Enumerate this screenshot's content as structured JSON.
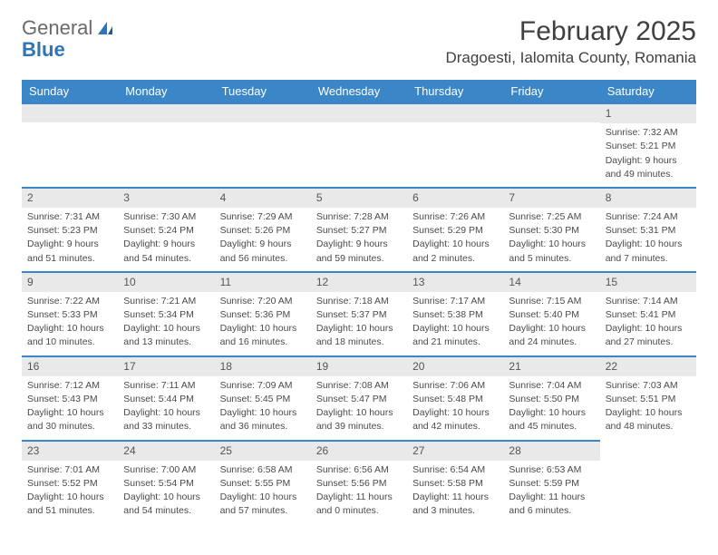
{
  "logo": {
    "text1": "General",
    "text2": "Blue",
    "icon_color": "#2e75b6",
    "text1_color": "#6a6a6a"
  },
  "title": "February 2025",
  "location": "Dragoesti, Ialomita County, Romania",
  "header_bg": "#3b86c7",
  "header_fg": "#ffffff",
  "daynum_bg": "#e9e9e9",
  "divider_color": "#3b86c7",
  "text_color": "#4a4a4a",
  "columns": [
    "Sunday",
    "Monday",
    "Tuesday",
    "Wednesday",
    "Thursday",
    "Friday",
    "Saturday"
  ],
  "weeks": [
    [
      null,
      null,
      null,
      null,
      null,
      null,
      {
        "n": "1",
        "sunrise": "Sunrise: 7:32 AM",
        "sunset": "Sunset: 5:21 PM",
        "day1": "Daylight: 9 hours",
        "day2": "and 49 minutes."
      }
    ],
    [
      {
        "n": "2",
        "sunrise": "Sunrise: 7:31 AM",
        "sunset": "Sunset: 5:23 PM",
        "day1": "Daylight: 9 hours",
        "day2": "and 51 minutes."
      },
      {
        "n": "3",
        "sunrise": "Sunrise: 7:30 AM",
        "sunset": "Sunset: 5:24 PM",
        "day1": "Daylight: 9 hours",
        "day2": "and 54 minutes."
      },
      {
        "n": "4",
        "sunrise": "Sunrise: 7:29 AM",
        "sunset": "Sunset: 5:26 PM",
        "day1": "Daylight: 9 hours",
        "day2": "and 56 minutes."
      },
      {
        "n": "5",
        "sunrise": "Sunrise: 7:28 AM",
        "sunset": "Sunset: 5:27 PM",
        "day1": "Daylight: 9 hours",
        "day2": "and 59 minutes."
      },
      {
        "n": "6",
        "sunrise": "Sunrise: 7:26 AM",
        "sunset": "Sunset: 5:29 PM",
        "day1": "Daylight: 10 hours",
        "day2": "and 2 minutes."
      },
      {
        "n": "7",
        "sunrise": "Sunrise: 7:25 AM",
        "sunset": "Sunset: 5:30 PM",
        "day1": "Daylight: 10 hours",
        "day2": "and 5 minutes."
      },
      {
        "n": "8",
        "sunrise": "Sunrise: 7:24 AM",
        "sunset": "Sunset: 5:31 PM",
        "day1": "Daylight: 10 hours",
        "day2": "and 7 minutes."
      }
    ],
    [
      {
        "n": "9",
        "sunrise": "Sunrise: 7:22 AM",
        "sunset": "Sunset: 5:33 PM",
        "day1": "Daylight: 10 hours",
        "day2": "and 10 minutes."
      },
      {
        "n": "10",
        "sunrise": "Sunrise: 7:21 AM",
        "sunset": "Sunset: 5:34 PM",
        "day1": "Daylight: 10 hours",
        "day2": "and 13 minutes."
      },
      {
        "n": "11",
        "sunrise": "Sunrise: 7:20 AM",
        "sunset": "Sunset: 5:36 PM",
        "day1": "Daylight: 10 hours",
        "day2": "and 16 minutes."
      },
      {
        "n": "12",
        "sunrise": "Sunrise: 7:18 AM",
        "sunset": "Sunset: 5:37 PM",
        "day1": "Daylight: 10 hours",
        "day2": "and 18 minutes."
      },
      {
        "n": "13",
        "sunrise": "Sunrise: 7:17 AM",
        "sunset": "Sunset: 5:38 PM",
        "day1": "Daylight: 10 hours",
        "day2": "and 21 minutes."
      },
      {
        "n": "14",
        "sunrise": "Sunrise: 7:15 AM",
        "sunset": "Sunset: 5:40 PM",
        "day1": "Daylight: 10 hours",
        "day2": "and 24 minutes."
      },
      {
        "n": "15",
        "sunrise": "Sunrise: 7:14 AM",
        "sunset": "Sunset: 5:41 PM",
        "day1": "Daylight: 10 hours",
        "day2": "and 27 minutes."
      }
    ],
    [
      {
        "n": "16",
        "sunrise": "Sunrise: 7:12 AM",
        "sunset": "Sunset: 5:43 PM",
        "day1": "Daylight: 10 hours",
        "day2": "and 30 minutes."
      },
      {
        "n": "17",
        "sunrise": "Sunrise: 7:11 AM",
        "sunset": "Sunset: 5:44 PM",
        "day1": "Daylight: 10 hours",
        "day2": "and 33 minutes."
      },
      {
        "n": "18",
        "sunrise": "Sunrise: 7:09 AM",
        "sunset": "Sunset: 5:45 PM",
        "day1": "Daylight: 10 hours",
        "day2": "and 36 minutes."
      },
      {
        "n": "19",
        "sunrise": "Sunrise: 7:08 AM",
        "sunset": "Sunset: 5:47 PM",
        "day1": "Daylight: 10 hours",
        "day2": "and 39 minutes."
      },
      {
        "n": "20",
        "sunrise": "Sunrise: 7:06 AM",
        "sunset": "Sunset: 5:48 PM",
        "day1": "Daylight: 10 hours",
        "day2": "and 42 minutes."
      },
      {
        "n": "21",
        "sunrise": "Sunrise: 7:04 AM",
        "sunset": "Sunset: 5:50 PM",
        "day1": "Daylight: 10 hours",
        "day2": "and 45 minutes."
      },
      {
        "n": "22",
        "sunrise": "Sunrise: 7:03 AM",
        "sunset": "Sunset: 5:51 PM",
        "day1": "Daylight: 10 hours",
        "day2": "and 48 minutes."
      }
    ],
    [
      {
        "n": "23",
        "sunrise": "Sunrise: 7:01 AM",
        "sunset": "Sunset: 5:52 PM",
        "day1": "Daylight: 10 hours",
        "day2": "and 51 minutes."
      },
      {
        "n": "24",
        "sunrise": "Sunrise: 7:00 AM",
        "sunset": "Sunset: 5:54 PM",
        "day1": "Daylight: 10 hours",
        "day2": "and 54 minutes."
      },
      {
        "n": "25",
        "sunrise": "Sunrise: 6:58 AM",
        "sunset": "Sunset: 5:55 PM",
        "day1": "Daylight: 10 hours",
        "day2": "and 57 minutes."
      },
      {
        "n": "26",
        "sunrise": "Sunrise: 6:56 AM",
        "sunset": "Sunset: 5:56 PM",
        "day1": "Daylight: 11 hours",
        "day2": "and 0 minutes."
      },
      {
        "n": "27",
        "sunrise": "Sunrise: 6:54 AM",
        "sunset": "Sunset: 5:58 PM",
        "day1": "Daylight: 11 hours",
        "day2": "and 3 minutes."
      },
      {
        "n": "28",
        "sunrise": "Sunrise: 6:53 AM",
        "sunset": "Sunset: 5:59 PM",
        "day1": "Daylight: 11 hours",
        "day2": "and 6 minutes."
      },
      null
    ]
  ]
}
